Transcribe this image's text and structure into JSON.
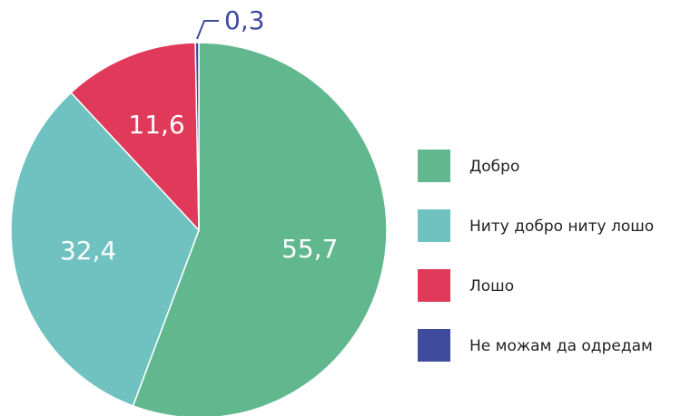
{
  "chart_data": {
    "type": "pie",
    "categories": [
      "Добро",
      "Ниту добро ниту лошо",
      "Лошо",
      "Не можам да одредам"
    ],
    "values": [
      55.7,
      32.4,
      11.6,
      0.3
    ],
    "value_labels": [
      "55,7",
      "32,4",
      "11,6",
      "0,3"
    ],
    "colors": [
      "#62b88e",
      "#6fc2c0",
      "#e0395a",
      "#3f4c9e"
    ]
  }
}
